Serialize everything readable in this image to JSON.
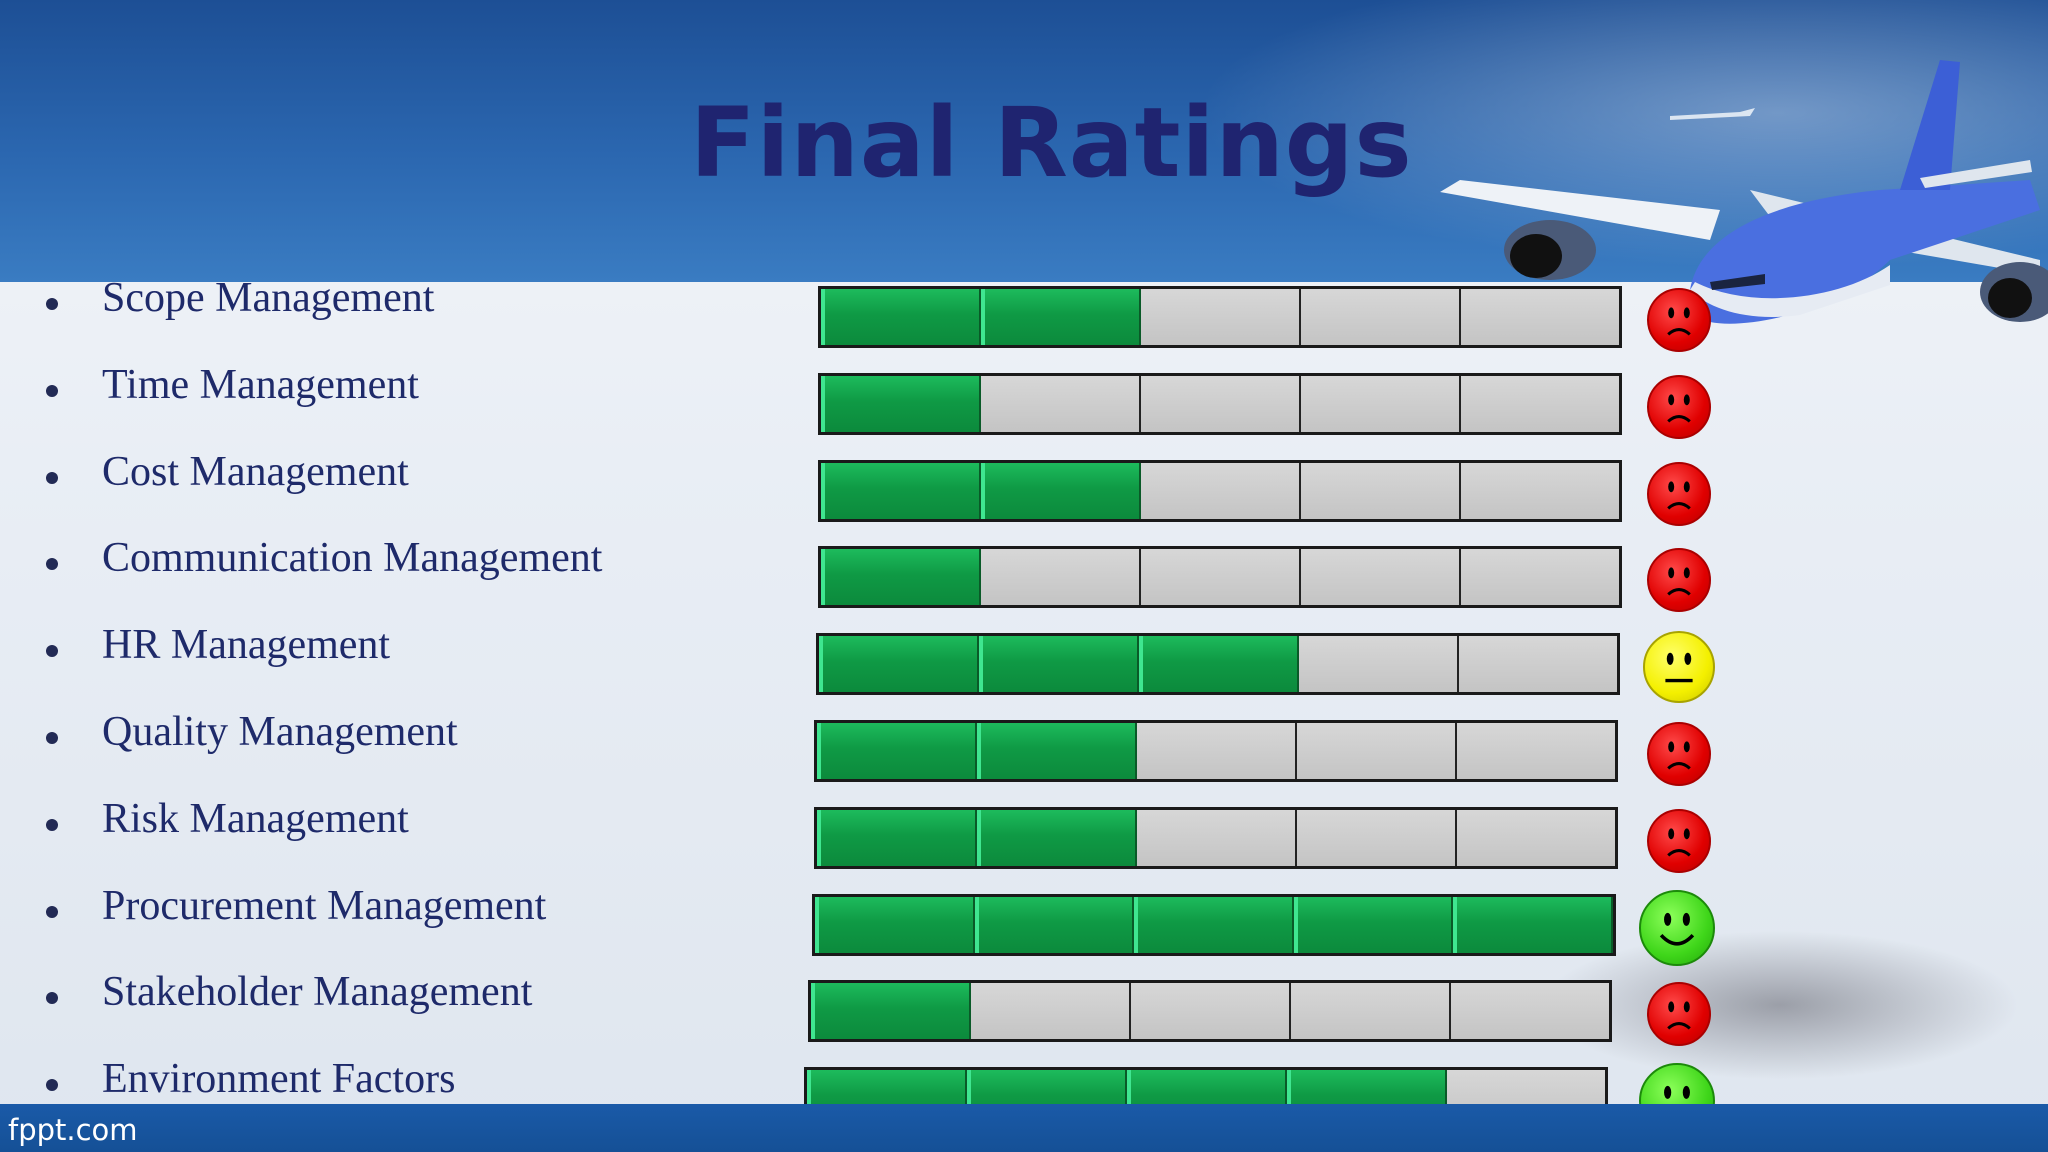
{
  "slide": {
    "title": "Final Ratings",
    "footer": "fppt.com"
  },
  "colors": {
    "filled": "#0f9a45",
    "empty": "#c9c9c9",
    "sad": "#e00000",
    "neutral": "#f4f000",
    "happy": "#3fd61a"
  },
  "ratings": {
    "max": 5,
    "items": [
      {
        "label": "Scope Management",
        "score": 2,
        "face": "sad"
      },
      {
        "label": "Time Management",
        "score": 1,
        "face": "sad"
      },
      {
        "label": "Cost Management",
        "score": 2,
        "face": "sad"
      },
      {
        "label": "Communication Management",
        "score": 1,
        "face": "sad"
      },
      {
        "label": "HR Management",
        "score": 3,
        "face": "neutral"
      },
      {
        "label": "Quality Management",
        "score": 2,
        "face": "sad"
      },
      {
        "label": "Risk Management",
        "score": 2,
        "face": "sad"
      },
      {
        "label": "Procurement Management",
        "score": 5,
        "face": "happy"
      },
      {
        "label": "Stakeholder Management",
        "score": 1,
        "face": "sad"
      },
      {
        "label": "Environment Factors",
        "score": 4,
        "face": "happy"
      }
    ]
  }
}
